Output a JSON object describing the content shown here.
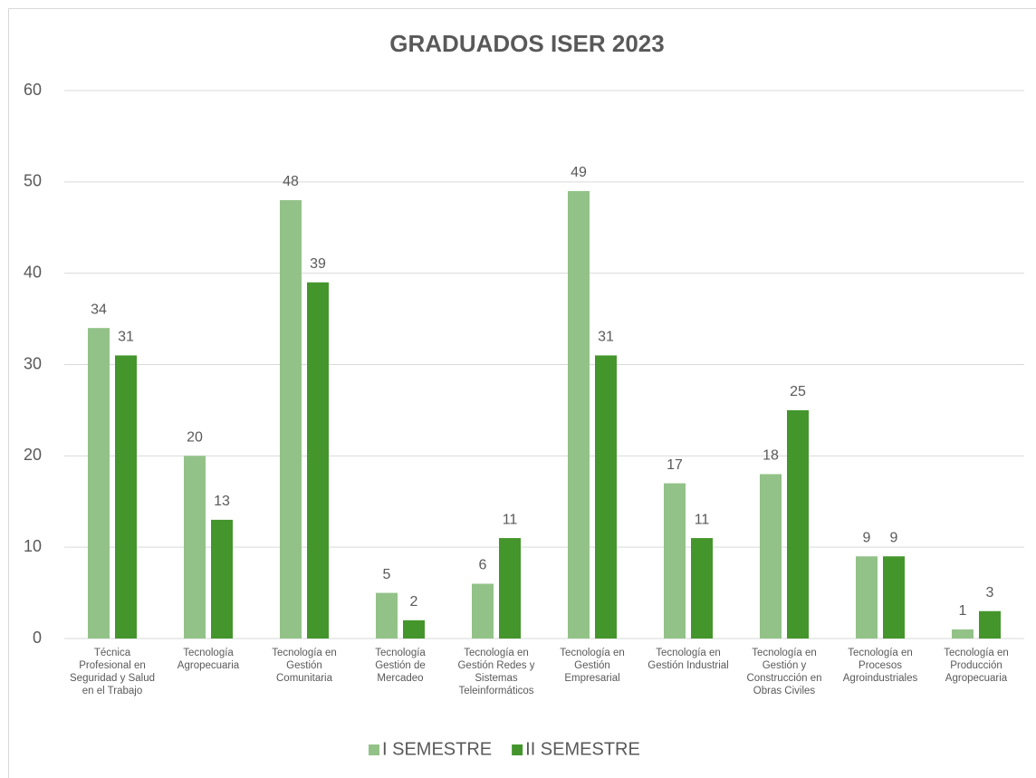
{
  "chart_data": {
    "type": "bar",
    "title": "GRADUADOS ISER 2023",
    "categories": [
      "Técnica Profesional en Seguridad y Salud en el Trabajo",
      "Tecnología Agropecuaria",
      "Tecnología en Gestión Comunitaria",
      "Tecnología Gestión de Mercadeo",
      "Tecnología en Gestión Redes y Sistemas Teleinformáticos",
      "Tecnología en Gestión Empresarial",
      "Tecnología en Gestión Industrial",
      "Tecnología en Gestión y Construcción en Obras Civiles",
      "Tecnología en Procesos Agroindustriales",
      "Tecnología en Producción Agropecuaria"
    ],
    "series": [
      {
        "name": "I SEMESTRE",
        "color": "#93c288",
        "values": [
          34,
          20,
          48,
          5,
          6,
          49,
          17,
          18,
          9,
          1
        ]
      },
      {
        "name": "II SEMESTRE",
        "color": "#44962c",
        "values": [
          31,
          13,
          39,
          2,
          11,
          31,
          11,
          25,
          9,
          3
        ]
      }
    ],
    "ylim": [
      0,
      60
    ],
    "yticks": [
      0,
      10,
      20,
      30,
      40,
      50,
      60
    ],
    "grid": true,
    "legend": "bottom"
  }
}
